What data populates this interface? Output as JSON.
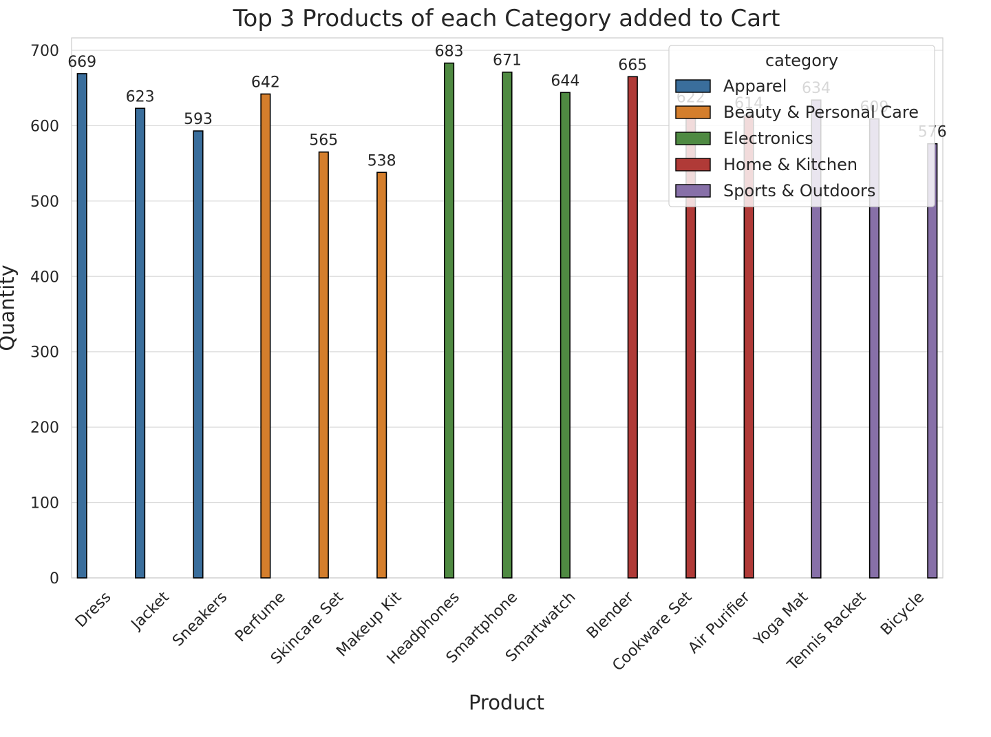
{
  "chart_data": {
    "type": "bar",
    "title": "Top 3 Products of each Category added to Cart",
    "xlabel": "Product",
    "ylabel": "Quantity",
    "ylim": [
      0,
      700
    ],
    "yticks": [
      0,
      100,
      200,
      300,
      400,
      500,
      600,
      700
    ],
    "grid": true,
    "legend_placement": "top-right",
    "legend_title": "category",
    "categories": [
      "Dress",
      "Jacket",
      "Sneakers",
      "Perfume",
      "Skincare Set",
      "Makeup Kit",
      "Headphones",
      "Smartphone",
      "Smartwatch",
      "Blender",
      "Cookware Set",
      "Air Purifier",
      "Yoga Mat",
      "Tennis Racket",
      "Bicycle"
    ],
    "series": [
      {
        "name": "Apparel",
        "color": "#3a6e9c",
        "values": [
          669,
          623,
          593,
          null,
          null,
          null,
          null,
          null,
          null,
          null,
          null,
          null,
          null,
          null,
          null
        ]
      },
      {
        "name": "Beauty & Personal Care",
        "color": "#d47e2c",
        "values": [
          null,
          null,
          null,
          642,
          565,
          538,
          null,
          null,
          null,
          null,
          null,
          null,
          null,
          null,
          null
        ]
      },
      {
        "name": "Electronics",
        "color": "#4f8a42",
        "values": [
          null,
          null,
          null,
          null,
          null,
          null,
          683,
          671,
          644,
          null,
          null,
          null,
          null,
          null,
          null
        ]
      },
      {
        "name": "Home & Kitchen",
        "color": "#b03a37",
        "values": [
          null,
          null,
          null,
          null,
          null,
          null,
          null,
          null,
          null,
          665,
          622,
          614,
          null,
          null,
          null
        ]
      },
      {
        "name": "Sports & Outdoors",
        "color": "#8770a8",
        "values": [
          null,
          null,
          null,
          null,
          null,
          null,
          null,
          null,
          null,
          null,
          null,
          null,
          634,
          609,
          576
        ]
      }
    ]
  }
}
